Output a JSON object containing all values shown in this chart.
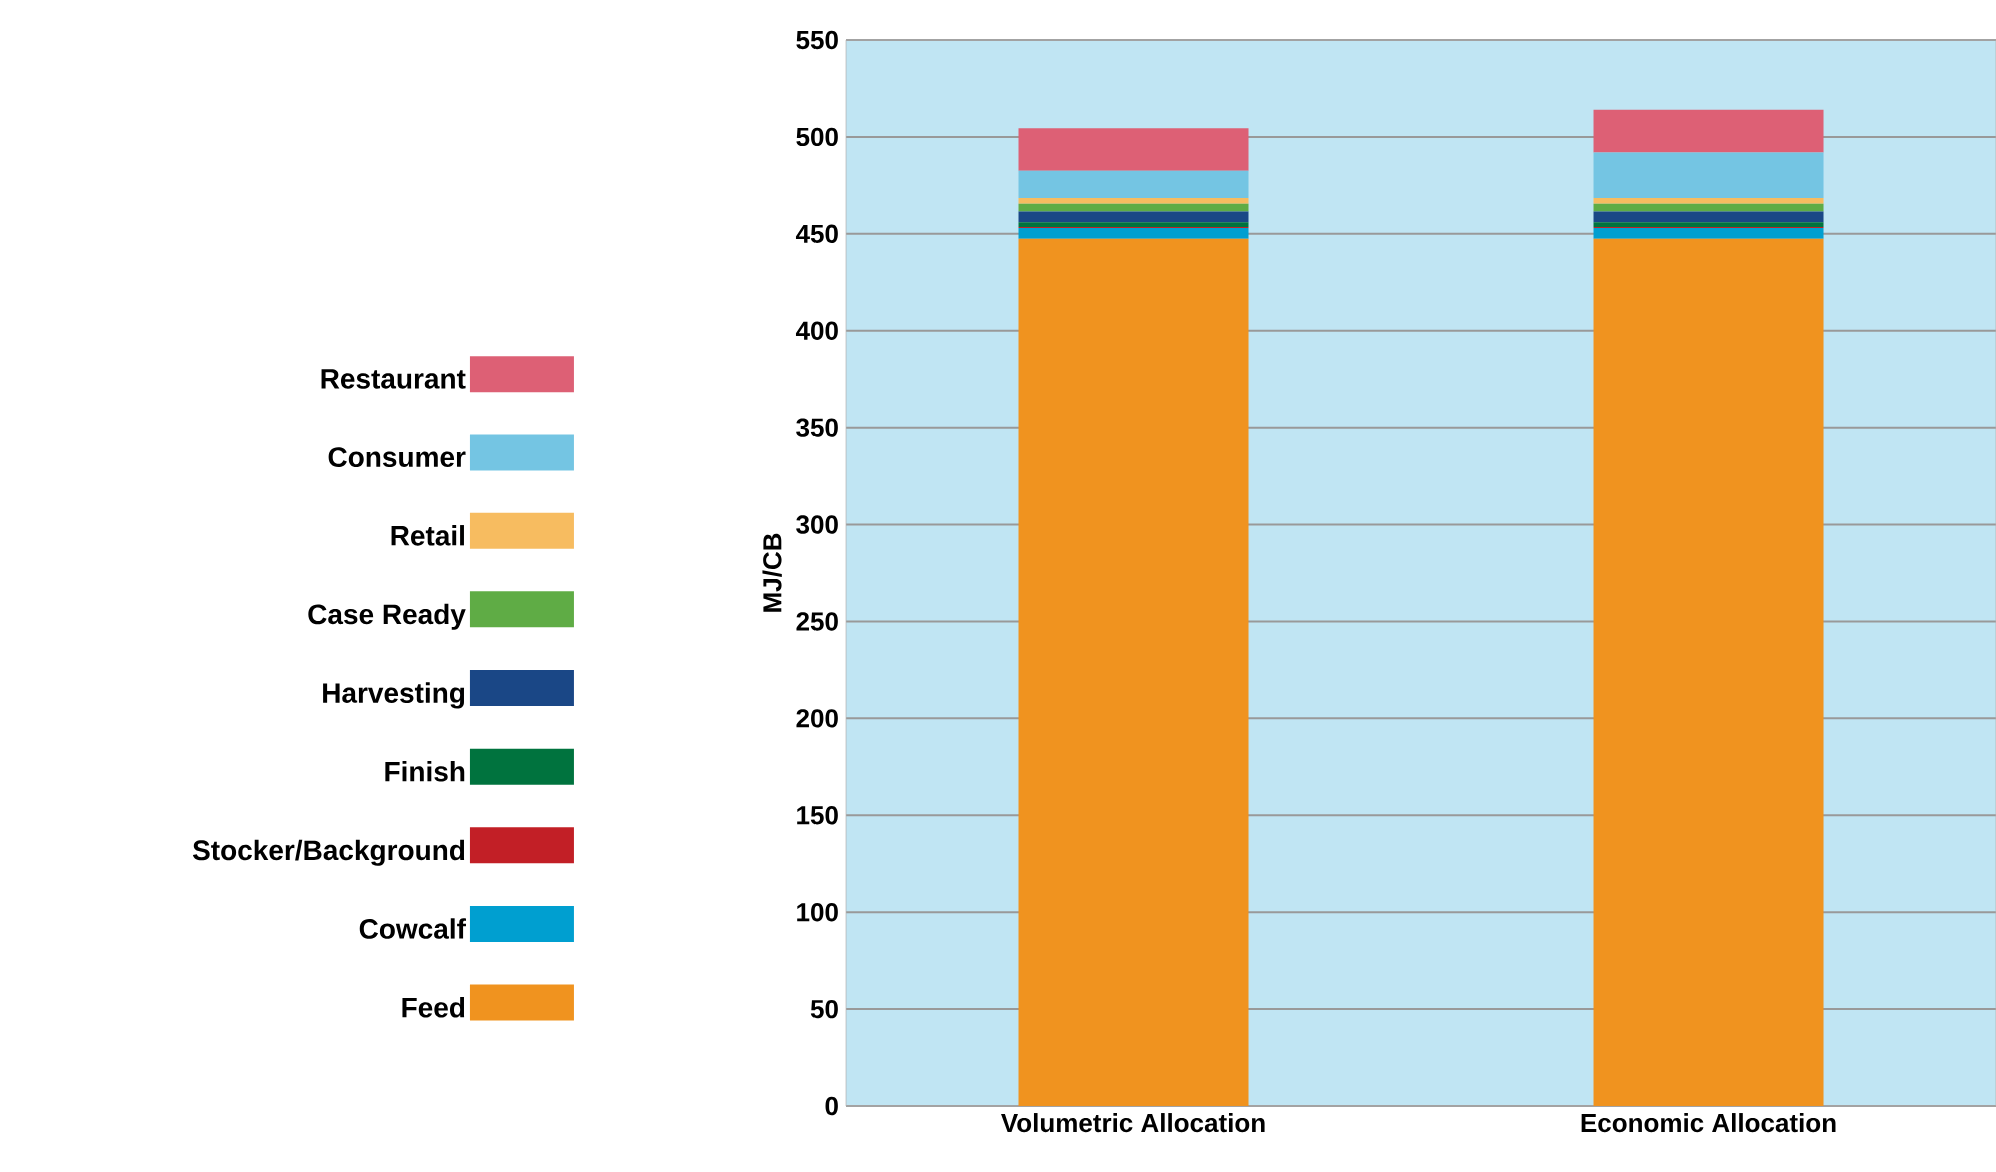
{
  "chart_data": {
    "type": "bar",
    "stacked": true,
    "ylabel": "MJ/CB",
    "categories": [
      "Volumetric Allocation",
      "Economic Allocation"
    ],
    "series": [
      {
        "name": "Feed",
        "color": "#f0931f",
        "values": [
          447.5,
          447.5
        ]
      },
      {
        "name": "Cowcalf",
        "color": "#009fd0",
        "values": [
          5.5,
          5.5
        ]
      },
      {
        "name": "Stocker/Background",
        "color": "#c21f26",
        "values": [
          0.5,
          0.5
        ]
      },
      {
        "name": "Finish",
        "color": "#00733e",
        "values": [
          2.5,
          2.5
        ]
      },
      {
        "name": "Harvesting",
        "color": "#1a4786",
        "values": [
          5.5,
          5.5
        ]
      },
      {
        "name": "Case Ready",
        "color": "#5fac45",
        "values": [
          4,
          4
        ]
      },
      {
        "name": "Retail",
        "color": "#f7bc60",
        "values": [
          3,
          3
        ]
      },
      {
        "name": "Consumer",
        "color": "#74c5e3",
        "values": [
          14,
          23.5
        ]
      },
      {
        "name": "Restaurant",
        "color": "#dd6075",
        "values": [
          22,
          22
        ]
      }
    ],
    "ylim": [
      0,
      550
    ],
    "yticks": [
      0,
      50,
      100,
      150,
      200,
      250,
      300,
      350,
      400,
      450,
      500,
      550
    ],
    "grid": "y",
    "legend": "left"
  }
}
